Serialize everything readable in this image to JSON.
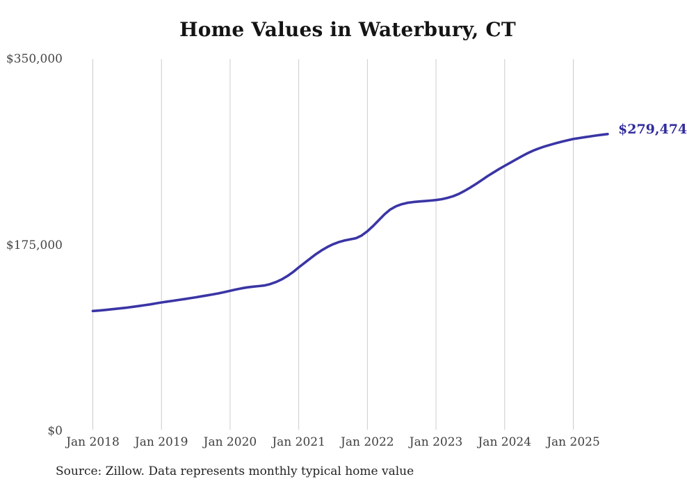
{
  "chart_data": {
    "type": "line",
    "title": "Home Values in Waterbury, CT",
    "source": "Source: Zillow. Data represents monthly typical home value",
    "end_label": "$279,474",
    "latest_value": 279474,
    "ylim": [
      0,
      350000
    ],
    "grid": "vertical-only",
    "legend": "none",
    "colors": {
      "line": "#3a35a5",
      "end_label": "#312c9c",
      "grid": "#cccccc",
      "tick_text": "#454545"
    },
    "y_ticks": [
      {
        "label": "$350,000",
        "value": 350000
      },
      {
        "label": "$175,000",
        "value": 175000
      },
      {
        "label": "$0",
        "value": 0
      }
    ],
    "x_ticks": [
      {
        "label": "Jan 2018",
        "month_index": 0
      },
      {
        "label": "Jan 2019",
        "month_index": 12
      },
      {
        "label": "Jan 2020",
        "month_index": 24
      },
      {
        "label": "Jan 2021",
        "month_index": 36
      },
      {
        "label": "Jan 2022",
        "month_index": 48
      },
      {
        "label": "Jan 2023",
        "month_index": 60
      },
      {
        "label": "Jan 2024",
        "month_index": 72
      },
      {
        "label": "Jan 2025",
        "month_index": 84
      }
    ],
    "series": [
      {
        "name": "Monthly typical home value",
        "start_month": "Jan 2018",
        "end_month": "Jul 2025",
        "values": [
          113000,
          113400,
          113900,
          114400,
          115000,
          115600,
          116200,
          116900,
          117600,
          118400,
          119200,
          120100,
          121000,
          121800,
          122600,
          123400,
          124200,
          125000,
          125900,
          126800,
          127700,
          128600,
          129600,
          130800,
          132000,
          133200,
          134300,
          135200,
          135900,
          136400,
          137000,
          138300,
          140200,
          142700,
          145800,
          149600,
          154000,
          158200,
          162400,
          166400,
          170000,
          173200,
          175800,
          177800,
          179300,
          180400,
          181500,
          184000,
          188000,
          193000,
          198500,
          204000,
          208500,
          211500,
          213500,
          214800,
          215500,
          216000,
          216400,
          216900,
          217400,
          218200,
          219400,
          221000,
          223200,
          226000,
          229200,
          232600,
          236200,
          239800,
          243200,
          246500,
          249600,
          252600,
          255600,
          258600,
          261400,
          263900,
          266000,
          267800,
          269400,
          270900,
          272300,
          273600,
          274800,
          275700,
          276500,
          277300,
          278100,
          278800,
          279474
        ]
      }
    ]
  }
}
